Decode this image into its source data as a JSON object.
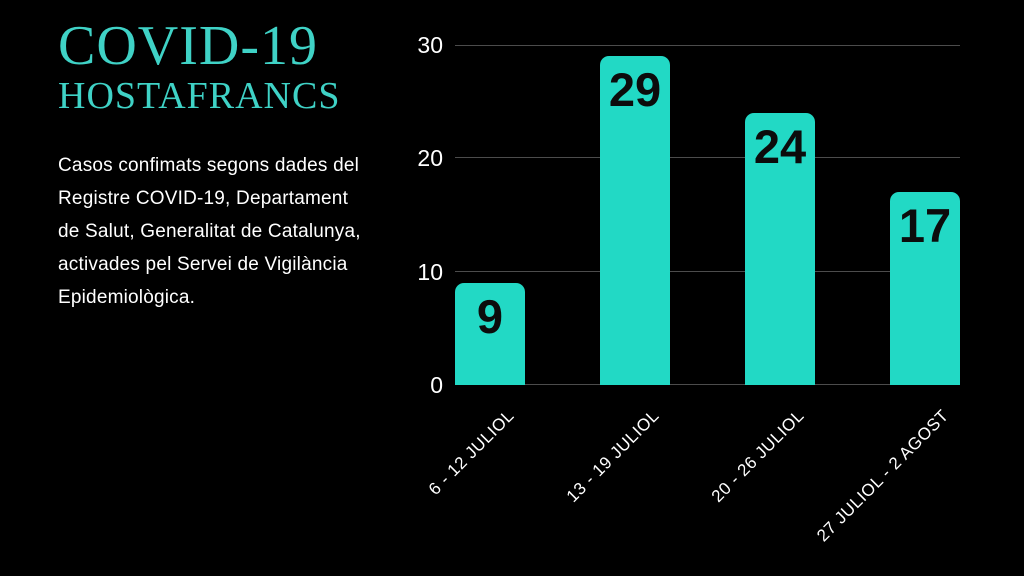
{
  "slide": {
    "background_color": "#000000",
    "accent_color": "#22D9C5"
  },
  "header": {
    "title": "COVID-19",
    "subtitle": "HOSTAFRANCS",
    "color": "#3FD2C6"
  },
  "description": "Casos confimats segons dades del\nRegistre COVID-19, Departament\nde Salut, Generalitat de Catalunya,\nactivades pel Servei de Vigilància\nEpidemiològica.",
  "chart_data": {
    "type": "bar",
    "title": "",
    "xlabel": "",
    "ylabel": "",
    "categories": [
      "6 - 12 JULIOL",
      "13 - 19 JULIOL",
      "20 - 26 JULIOL",
      "27 JULIOL - 2 AGOST"
    ],
    "values": [
      9,
      29,
      24,
      17
    ],
    "ylim": [
      0,
      30
    ],
    "yticks": [
      0,
      10,
      20,
      30
    ],
    "grid": true,
    "legend": false,
    "bar_color": "#22D9C5",
    "value_label_color": "#0C0C0C",
    "axis_text_color": "#FFFFFF",
    "gridline_color": "#4C4C4C"
  }
}
